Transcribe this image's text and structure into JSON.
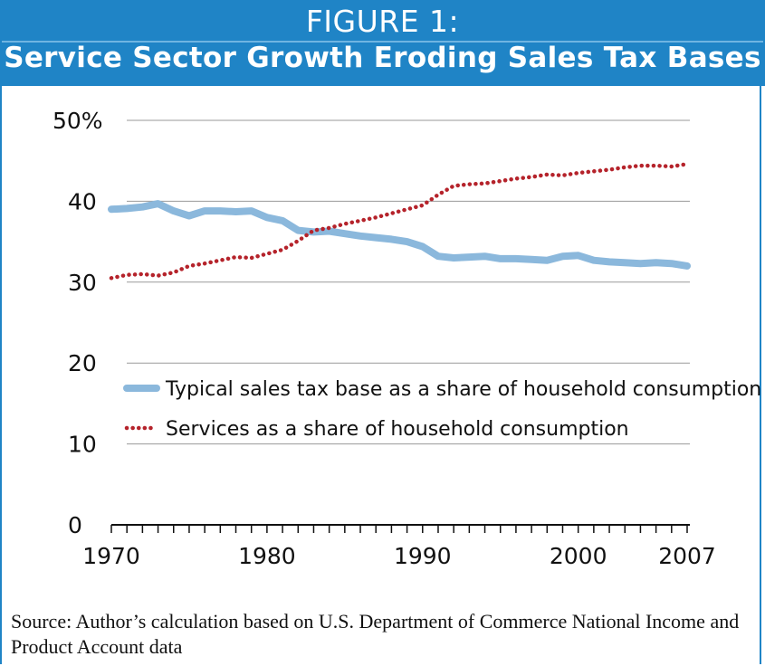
{
  "header": {
    "figure_label": "FIGURE 1:",
    "title": "Service Sector Growth Eroding Sales Tax Bases"
  },
  "source_note": "Source: Author’s calculation based on U.S. Department of Commerce National Income and Product Account data",
  "chart_data": {
    "type": "line",
    "title": "Service Sector Growth Eroding Sales Tax Bases",
    "xlim": [
      1970,
      2007
    ],
    "ylim": [
      0,
      50
    ],
    "x_tick_labels": [
      {
        "value": 1970,
        "label": "1970"
      },
      {
        "value": 1980,
        "label": "1980"
      },
      {
        "value": 1990,
        "label": "1990"
      },
      {
        "value": 2000,
        "label": "2000"
      },
      {
        "value": 2007,
        "label": "2007"
      }
    ],
    "y_tick_labels": [
      {
        "value": 0,
        "label": "0"
      },
      {
        "value": 10,
        "label": "10"
      },
      {
        "value": 20,
        "label": "20"
      },
      {
        "value": 30,
        "label": "30"
      },
      {
        "value": 40,
        "label": "40"
      },
      {
        "value": 50,
        "label": "50%"
      }
    ],
    "grid": true,
    "legend_position": "center-left",
    "x": [
      1970,
      1971,
      1972,
      1973,
      1974,
      1975,
      1976,
      1977,
      1978,
      1979,
      1980,
      1981,
      1982,
      1983,
      1984,
      1985,
      1986,
      1987,
      1988,
      1989,
      1990,
      1991,
      1992,
      1993,
      1994,
      1995,
      1996,
      1997,
      1998,
      1999,
      2000,
      2001,
      2002,
      2003,
      2004,
      2005,
      2006,
      2007
    ],
    "series": [
      {
        "name": "Typical sales tax base as a share of household consumption",
        "color": "#8bb8dc",
        "style": "solid",
        "values": [
          39.0,
          39.1,
          39.3,
          39.7,
          38.8,
          38.2,
          38.8,
          38.8,
          38.7,
          38.8,
          38.0,
          37.6,
          36.4,
          36.2,
          36.3,
          36.0,
          35.7,
          35.5,
          35.3,
          35.0,
          34.4,
          33.2,
          33.0,
          33.1,
          33.2,
          32.9,
          32.9,
          32.8,
          32.7,
          33.2,
          33.3,
          32.7,
          32.5,
          32.4,
          32.3,
          32.4,
          32.3,
          32.0
        ]
      },
      {
        "name": "Services as a share of household consumption",
        "color": "#b5232b",
        "style": "dotted",
        "values": [
          30.5,
          30.9,
          31.0,
          30.8,
          31.2,
          32.0,
          32.3,
          32.7,
          33.1,
          33.0,
          33.5,
          34.0,
          35.1,
          36.4,
          36.7,
          37.2,
          37.6,
          38.0,
          38.5,
          39.0,
          39.5,
          40.8,
          41.9,
          42.1,
          42.2,
          42.5,
          42.8,
          43.0,
          43.3,
          43.2,
          43.5,
          43.7,
          43.9,
          44.2,
          44.4,
          44.4,
          44.3,
          44.6
        ]
      }
    ]
  }
}
